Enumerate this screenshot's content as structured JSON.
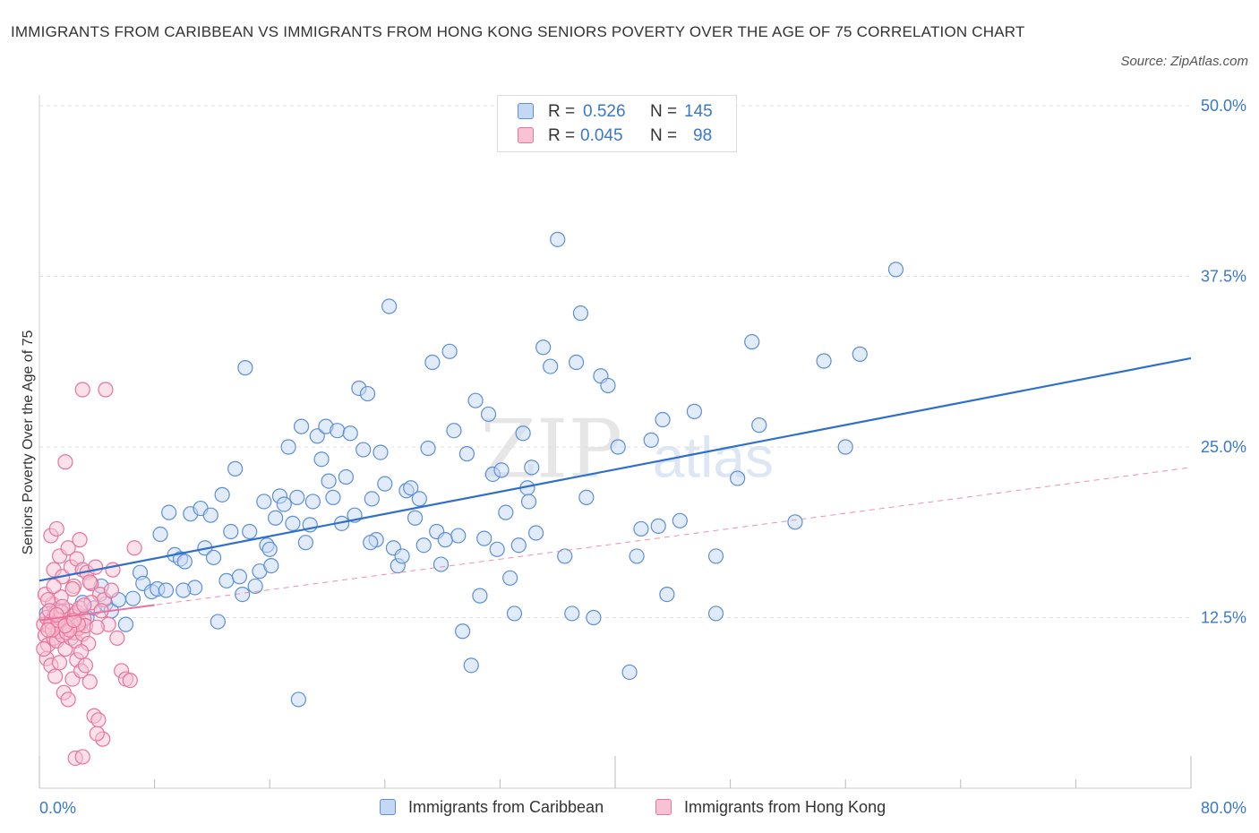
{
  "title": "IMMIGRANTS FROM CARIBBEAN VS IMMIGRANTS FROM HONG KONG SENIORS POVERTY OVER THE AGE OF 75 CORRELATION CHART",
  "source": "Source: ZipAtlas.com",
  "watermark": {
    "zip": "ZIP",
    "atlas": "atlas"
  },
  "legend": {
    "r_label": "R =",
    "n_label": "N =",
    "rows": [
      {
        "r": "0.526",
        "n": "145"
      },
      {
        "r": "0.045",
        "n": "98"
      }
    ]
  },
  "colors": {
    "caribbean": "#5b8fd6",
    "caribbean_fill": "#c5d8f3",
    "hongkong": "#e8739b",
    "hongkong_fill": "#f7c3d4",
    "trend_blue": "#2f6fcc",
    "trend_pink": "#e8739b",
    "tick_blue": "#3a78c9"
  },
  "chart_data": {
    "type": "scatter",
    "title": "IMMIGRANTS FROM CARIBBEAN VS IMMIGRANTS FROM HONG KONG SENIORS POVERTY OVER THE AGE OF 75 CORRELATION CHART",
    "xlabel": "",
    "ylabel": "Seniors Poverty Over the Age of 75",
    "xlim": [
      0,
      80
    ],
    "ylim": [
      0,
      50
    ],
    "x_tick_labels": [
      "0.0%",
      "80.0%"
    ],
    "y_ticks": [
      12.5,
      25,
      37.5,
      50
    ],
    "y_tick_labels": [
      "12.5%",
      "25.0%",
      "37.5%",
      "50.0%"
    ],
    "grid": true,
    "legend_position": "top-center and bottom",
    "series": [
      {
        "name": "Immigrants from Caribbean",
        "r": 0.526,
        "n": 145,
        "trend": [
          [
            0,
            15.2
          ],
          [
            80,
            31.5
          ]
        ],
        "points": [
          [
            0.5,
            12.8
          ],
          [
            1.0,
            12.5
          ],
          [
            1.5,
            13.0
          ],
          [
            2.0,
            12.0
          ],
          [
            2.5,
            12.8
          ],
          [
            3.0,
            13.6
          ],
          [
            3.3,
            12.5
          ],
          [
            3.8,
            13.2
          ],
          [
            4.3,
            14.8
          ],
          [
            4.6,
            13.5
          ],
          [
            5.0,
            13.0
          ],
          [
            5.5,
            13.8
          ],
          [
            6.0,
            12.0
          ],
          [
            6.5,
            13.9
          ],
          [
            7.0,
            15.8
          ],
          [
            7.2,
            15.0
          ],
          [
            7.8,
            14.4
          ],
          [
            8.2,
            14.6
          ],
          [
            8.4,
            18.6
          ],
          [
            8.8,
            14.5
          ],
          [
            9.0,
            20.2
          ],
          [
            9.4,
            17.1
          ],
          [
            9.8,
            16.8
          ],
          [
            10.1,
            16.6
          ],
          [
            10.5,
            20.1
          ],
          [
            10.8,
            14.7
          ],
          [
            11.2,
            20.5
          ],
          [
            11.5,
            17.6
          ],
          [
            11.9,
            20.0
          ],
          [
            12.1,
            16.9
          ],
          [
            12.4,
            12.2
          ],
          [
            12.7,
            21.5
          ],
          [
            13.0,
            15.2
          ],
          [
            13.3,
            18.8
          ],
          [
            13.6,
            23.4
          ],
          [
            13.9,
            15.5
          ],
          [
            14.1,
            14.2
          ],
          [
            14.3,
            30.8
          ],
          [
            14.6,
            18.8
          ],
          [
            15.0,
            14.8
          ],
          [
            15.3,
            15.9
          ],
          [
            15.6,
            21.0
          ],
          [
            15.8,
            17.8
          ],
          [
            16.1,
            16.3
          ],
          [
            16.4,
            19.8
          ],
          [
            16.7,
            21.4
          ],
          [
            17.0,
            20.8
          ],
          [
            17.3,
            25.0
          ],
          [
            17.6,
            19.4
          ],
          [
            17.9,
            21.3
          ],
          [
            18.2,
            26.5
          ],
          [
            18.5,
            18.0
          ],
          [
            18.8,
            19.3
          ],
          [
            19.0,
            21.0
          ],
          [
            19.3,
            25.8
          ],
          [
            19.6,
            24.1
          ],
          [
            19.9,
            26.5
          ],
          [
            20.1,
            22.5
          ],
          [
            20.4,
            21.3
          ],
          [
            20.7,
            26.2
          ],
          [
            21.0,
            19.4
          ],
          [
            21.3,
            22.8
          ],
          [
            21.6,
            26.0
          ],
          [
            21.9,
            20.0
          ],
          [
            22.2,
            29.3
          ],
          [
            22.5,
            24.8
          ],
          [
            22.8,
            28.9
          ],
          [
            23.1,
            21.2
          ],
          [
            23.4,
            18.2
          ],
          [
            23.7,
            24.6
          ],
          [
            24.0,
            22.3
          ],
          [
            24.3,
            35.3
          ],
          [
            24.6,
            17.6
          ],
          [
            24.9,
            16.3
          ],
          [
            25.2,
            17.0
          ],
          [
            25.5,
            21.8
          ],
          [
            25.8,
            22.0
          ],
          [
            26.1,
            19.8
          ],
          [
            26.4,
            21.2
          ],
          [
            26.7,
            17.8
          ],
          [
            27.0,
            24.9
          ],
          [
            27.3,
            31.2
          ],
          [
            27.6,
            18.8
          ],
          [
            27.9,
            16.4
          ],
          [
            28.2,
            18.2
          ],
          [
            28.5,
            32.0
          ],
          [
            28.8,
            26.2
          ],
          [
            29.1,
            18.5
          ],
          [
            29.4,
            11.5
          ],
          [
            29.7,
            24.5
          ],
          [
            30.0,
            9.0
          ],
          [
            30.3,
            28.4
          ],
          [
            30.6,
            14.1
          ],
          [
            30.9,
            18.3
          ],
          [
            31.2,
            27.4
          ],
          [
            31.5,
            23.0
          ],
          [
            31.8,
            17.5
          ],
          [
            32.1,
            23.3
          ],
          [
            32.4,
            20.2
          ],
          [
            32.7,
            15.4
          ],
          [
            33.0,
            12.8
          ],
          [
            33.3,
            17.8
          ],
          [
            33.6,
            26.0
          ],
          [
            33.9,
            22.0
          ],
          [
            34.2,
            23.5
          ],
          [
            34.5,
            18.7
          ],
          [
            35.0,
            32.3
          ],
          [
            35.5,
            30.9
          ],
          [
            36.0,
            40.2
          ],
          [
            36.5,
            17.0
          ],
          [
            37.0,
            12.8
          ],
          [
            37.3,
            31.2
          ],
          [
            37.6,
            34.8
          ],
          [
            38.0,
            21.3
          ],
          [
            38.5,
            12.5
          ],
          [
            39.0,
            30.2
          ],
          [
            39.5,
            29.5
          ],
          [
            40.2,
            25.0
          ],
          [
            41.0,
            8.5
          ],
          [
            41.5,
            17.0
          ],
          [
            41.8,
            19.0
          ],
          [
            42.5,
            25.5
          ],
          [
            43.0,
            19.2
          ],
          [
            43.3,
            27.0
          ],
          [
            43.6,
            14.2
          ],
          [
            44.5,
            19.6
          ],
          [
            45.5,
            27.6
          ],
          [
            47.0,
            17.0
          ],
          [
            48.5,
            22.7
          ],
          [
            49.5,
            32.7
          ],
          [
            50.0,
            26.6
          ],
          [
            52.5,
            19.5
          ],
          [
            54.5,
            31.3
          ],
          [
            56.0,
            25.0
          ],
          [
            57.0,
            31.8
          ],
          [
            59.5,
            38.0
          ],
          [
            47.0,
            12.8
          ],
          [
            34.0,
            21.0
          ],
          [
            23.0,
            18.0
          ],
          [
            18.0,
            6.5
          ],
          [
            10.0,
            14.5
          ],
          [
            16.0,
            17.5
          ]
        ]
      },
      {
        "name": "Immigrants from Hong Kong",
        "r": 0.045,
        "n": 98,
        "trend": [
          [
            0,
            12.3
          ],
          [
            80,
            23.5
          ]
        ],
        "points": [
          [
            0.3,
            12.0
          ],
          [
            0.4,
            11.2
          ],
          [
            0.5,
            12.5
          ],
          [
            0.6,
            10.5
          ],
          [
            0.7,
            11.8
          ],
          [
            0.8,
            12.2
          ],
          [
            0.9,
            13.5
          ],
          [
            1.0,
            11.0
          ],
          [
            1.1,
            12.8
          ],
          [
            1.2,
            10.8
          ],
          [
            1.3,
            11.5
          ],
          [
            1.4,
            12.0
          ],
          [
            1.5,
            14.0
          ],
          [
            1.6,
            11.2
          ],
          [
            1.7,
            12.5
          ],
          [
            1.8,
            10.2
          ],
          [
            1.9,
            11.8
          ],
          [
            2.0,
            13.0
          ],
          [
            2.1,
            12.2
          ],
          [
            2.2,
            11.0
          ],
          [
            2.3,
            12.6
          ],
          [
            2.4,
            11.4
          ],
          [
            2.5,
            10.8
          ],
          [
            2.6,
            12.9
          ],
          [
            2.7,
            11.7
          ],
          [
            2.8,
            13.2
          ],
          [
            2.9,
            12.1
          ],
          [
            3.0,
            11.3
          ],
          [
            3.1,
            12.4
          ],
          [
            3.2,
            11.9
          ],
          [
            0.4,
            14.2
          ],
          [
            0.6,
            13.8
          ],
          [
            0.8,
            18.5
          ],
          [
            1.0,
            16.0
          ],
          [
            1.2,
            19.0
          ],
          [
            1.4,
            17.0
          ],
          [
            1.6,
            15.5
          ],
          [
            1.8,
            23.9
          ],
          [
            2.0,
            17.6
          ],
          [
            2.2,
            16.2
          ],
          [
            2.4,
            14.8
          ],
          [
            2.6,
            16.8
          ],
          [
            2.8,
            18.2
          ],
          [
            3.0,
            16.0
          ],
          [
            3.3,
            15.8
          ],
          [
            3.6,
            15.0
          ],
          [
            3.9,
            16.2
          ],
          [
            4.2,
            14.2
          ],
          [
            4.5,
            13.8
          ],
          [
            4.8,
            12.0
          ],
          [
            5.1,
            16.0
          ],
          [
            5.4,
            11.0
          ],
          [
            5.7,
            8.6
          ],
          [
            6.0,
            8.0
          ],
          [
            6.3,
            7.9
          ],
          [
            6.6,
            17.6
          ],
          [
            0.5,
            9.5
          ],
          [
            0.8,
            9.0
          ],
          [
            1.1,
            8.2
          ],
          [
            1.4,
            9.2
          ],
          [
            1.7,
            7.0
          ],
          [
            2.0,
            6.5
          ],
          [
            2.3,
            8.0
          ],
          [
            2.6,
            9.4
          ],
          [
            2.9,
            8.6
          ],
          [
            3.2,
            9.0
          ],
          [
            3.5,
            7.8
          ],
          [
            3.8,
            5.3
          ],
          [
            4.1,
            5.0
          ],
          [
            4.4,
            3.6
          ],
          [
            2.5,
            2.2
          ],
          [
            3.0,
            2.3
          ],
          [
            4.0,
            4.0
          ],
          [
            3.0,
            29.2
          ],
          [
            4.6,
            29.2
          ],
          [
            0.9,
            11.6
          ],
          [
            1.3,
            12.3
          ],
          [
            1.9,
            11.4
          ],
          [
            2.7,
            12.0
          ],
          [
            3.4,
            10.6
          ],
          [
            0.3,
            10.2
          ],
          [
            0.7,
            13.0
          ],
          [
            1.5,
            12.9
          ],
          [
            2.1,
            11.6
          ],
          [
            2.9,
            10.0
          ],
          [
            3.6,
            13.6
          ],
          [
            4.3,
            13.0
          ],
          [
            5.0,
            14.5
          ],
          [
            1.0,
            14.8
          ],
          [
            1.6,
            13.3
          ],
          [
            2.3,
            14.6
          ],
          [
            3.5,
            15.1
          ],
          [
            4.0,
            11.8
          ],
          [
            0.6,
            11.6
          ],
          [
            1.2,
            12.7
          ],
          [
            1.8,
            11.9
          ],
          [
            2.4,
            12.3
          ],
          [
            3.1,
            13.4
          ]
        ]
      }
    ]
  },
  "bottom_legend": [
    "Immigrants from Caribbean",
    "Immigrants from Hong Kong"
  ]
}
